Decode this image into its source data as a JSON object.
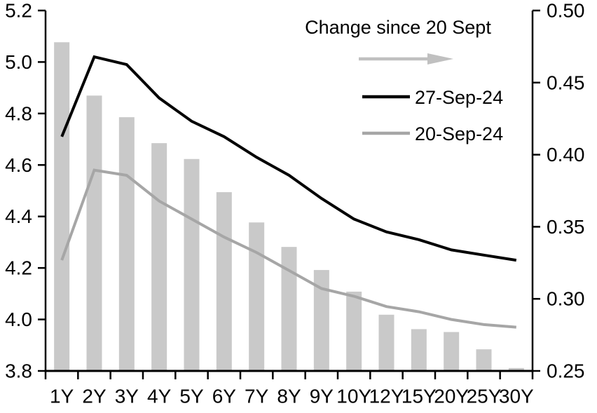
{
  "chart_data": {
    "type": "bar+line combo",
    "title": "",
    "categories": [
      "1Y",
      "2Y",
      "3Y",
      "4Y",
      "5Y",
      "6Y",
      "7Y",
      "8Y",
      "9Y",
      "10Y",
      "12Y",
      "15Y",
      "20Y",
      "25Y",
      "30Y"
    ],
    "series": [
      {
        "name": "Change since 20 Sept",
        "type": "bar",
        "axis": "right",
        "color": "#c9c9c9",
        "values": [
          0.478,
          0.441,
          0.426,
          0.408,
          0.397,
          0.374,
          0.353,
          0.336,
          0.32,
          0.305,
          0.289,
          0.279,
          0.277,
          0.265,
          0.252
        ]
      },
      {
        "name": "27-Sep-24",
        "type": "line",
        "axis": "left",
        "color": "#000000",
        "values": [
          4.71,
          5.02,
          4.99,
          4.86,
          4.77,
          4.71,
          4.63,
          4.56,
          4.47,
          4.39,
          4.34,
          4.31,
          4.27,
          4.25,
          4.23
        ]
      },
      {
        "name": "20-Sep-24",
        "type": "line",
        "axis": "left",
        "color": "#a6a6a6",
        "values": [
          4.23,
          4.58,
          4.56,
          4.46,
          4.39,
          4.32,
          4.26,
          4.19,
          4.12,
          4.09,
          4.05,
          4.03,
          4.0,
          3.98,
          3.97
        ]
      }
    ],
    "left_axis": {
      "min": 3.8,
      "max": 5.2,
      "ticks": [
        "5.2",
        "5.0",
        "4.8",
        "4.6",
        "4.4",
        "4.2",
        "4.0",
        "3.8"
      ]
    },
    "right_axis": {
      "min": 0.25,
      "max": 0.5,
      "ticks": [
        "0.50",
        "0.45",
        "0.40",
        "0.35",
        "0.30",
        "0.25"
      ]
    },
    "grid": false,
    "legend": {
      "position": "top-right-inside",
      "arrow_label": "Change since 20 Sept",
      "arrow_color": "#c0c0c0",
      "entries": [
        {
          "label": "27-Sep-24",
          "color": "#000000"
        },
        {
          "label": "20-Sep-24",
          "color": "#a6a6a6"
        }
      ]
    }
  }
}
